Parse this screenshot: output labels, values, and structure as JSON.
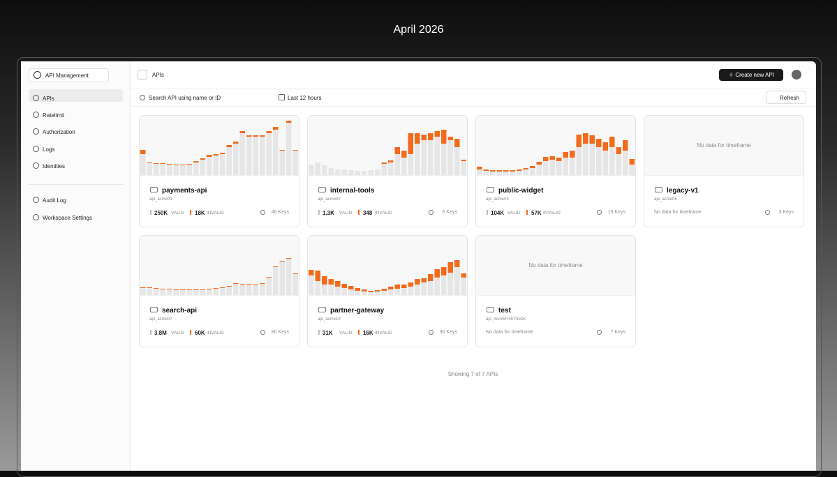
{
  "header": {
    "date": "April 2026"
  },
  "sidebar": {
    "workspace": "API Management",
    "nav": [
      "APIs",
      "Ratelimit",
      "Authorization",
      "Logs",
      "Identities"
    ],
    "nav2": [
      "Audit Log",
      "Workspace Settings"
    ]
  },
  "topbar": {
    "title": "APIs",
    "create_button": "Create new API"
  },
  "filters": {
    "search_placeholder": "Search API using name or ID",
    "timeframe": "Last 12 hours",
    "refresh": "Refresh"
  },
  "cards": [
    {
      "name": "payments-api",
      "id": "api_acme01",
      "valid": "250K",
      "valid_label": "VALID",
      "invalid": "18K",
      "invalid_label": "INVALID",
      "keys": "40 Keys",
      "chart": {
        "ylim": [
          0,
          80
        ],
        "valid": [
          30,
          18,
          16,
          16,
          15,
          14,
          14,
          15,
          18,
          22,
          26,
          28,
          30,
          40,
          45,
          60,
          55,
          55,
          55,
          60,
          65,
          35,
          75,
          35
        ],
        "invalid": [
          6,
          1,
          1,
          1,
          1,
          1,
          1,
          1,
          2,
          2,
          3,
          2,
          2,
          3,
          3,
          3,
          2,
          2,
          2,
          3,
          4,
          1,
          3,
          1
        ]
      }
    },
    {
      "name": "internal-tools",
      "id": "api_acme02",
      "valid": "1.3K",
      "valid_label": "VALID",
      "invalid": "348",
      "invalid_label": "INVALID",
      "keys": "6 Keys",
      "chart": {
        "ylim": [
          0,
          80
        ],
        "valid": [
          15,
          18,
          14,
          10,
          8,
          8,
          7,
          6,
          6,
          7,
          8,
          16,
          18,
          30,
          25,
          30,
          45,
          50,
          50,
          55,
          45,
          50,
          40,
          20
        ],
        "invalid": [
          0,
          0,
          0,
          0,
          0,
          0,
          0,
          0,
          0,
          0,
          0,
          2,
          3,
          10,
          10,
          30,
          15,
          8,
          10,
          8,
          20,
          5,
          12,
          2
        ]
      }
    },
    {
      "name": "public-widget",
      "id": "api_acme03",
      "valid": "104K",
      "valid_label": "VALID",
      "invalid": "57K",
      "invalid_label": "INVALID",
      "keys": "15 Keys",
      "chart": {
        "ylim": [
          0,
          80
        ],
        "valid": [
          8,
          6,
          5,
          5,
          5,
          5,
          6,
          8,
          10,
          15,
          20,
          22,
          20,
          25,
          25,
          40,
          45,
          45,
          40,
          35,
          40,
          30,
          35,
          15
        ],
        "invalid": [
          4,
          2,
          2,
          2,
          2,
          2,
          2,
          2,
          3,
          4,
          6,
          5,
          5,
          8,
          10,
          18,
          15,
          12,
          12,
          12,
          15,
          10,
          15,
          8
        ]
      }
    },
    {
      "name": "legacy-v1",
      "id": "api_acme06",
      "chart_message": "No data for timeframe",
      "stats_message": "No data for timeframe",
      "keys": "3 Keys"
    },
    {
      "name": "search-api",
      "id": "api_acme07",
      "valid": "3.8M",
      "valid_label": "VALID",
      "invalid": "60K",
      "invalid_label": "INVALID",
      "keys": "80 Keys",
      "chart": {
        "ylim": [
          0,
          80
        ],
        "valid": [
          10,
          10,
          9,
          8,
          8,
          7,
          7,
          7,
          7,
          7,
          8,
          9,
          10,
          12,
          16,
          15,
          15,
          14,
          16,
          25,
          40,
          48,
          52,
          30
        ],
        "invalid": [
          1,
          1,
          1,
          1,
          1,
          1,
          1,
          1,
          1,
          1,
          1,
          1,
          1,
          1,
          1,
          1,
          1,
          1,
          1,
          1,
          1,
          1,
          1,
          1
        ]
      }
    },
    {
      "name": "partner-gateway",
      "id": "api_acme10",
      "valid": "31K",
      "valid_label": "VALID",
      "invalid": "16K",
      "invalid_label": "INVALID",
      "keys": "30 Keys",
      "chart": {
        "ylim": [
          0,
          80
        ],
        "valid": [
          28,
          20,
          15,
          15,
          12,
          10,
          8,
          6,
          5,
          4,
          5,
          6,
          8,
          9,
          10,
          12,
          15,
          18,
          20,
          25,
          28,
          32,
          40,
          25
        ],
        "invalid": [
          8,
          15,
          12,
          8,
          8,
          6,
          5,
          4,
          3,
          2,
          2,
          3,
          4,
          6,
          5,
          6,
          8,
          6,
          10,
          12,
          12,
          15,
          10,
          6
        ]
      }
    },
    {
      "name": "test",
      "id": "api_mxU5Fm5Y3oDk",
      "chart_message": "No data for timeframe",
      "stats_message": "No data for timeframe",
      "keys": "7 Keys"
    }
  ],
  "footer": "Showing 7 of 7 APIs"
}
